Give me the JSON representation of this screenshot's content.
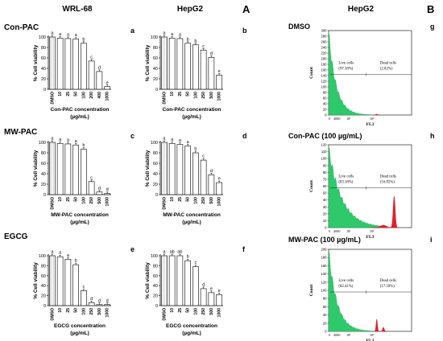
{
  "headers": {
    "panel_A": "A",
    "panel_B": "B",
    "col_wrl": "WRL-68",
    "col_hepg2": "HepG2",
    "col_flow": "HepG2"
  },
  "rows": [
    {
      "label": "Con-PAC"
    },
    {
      "label": "MW-PAC"
    },
    {
      "label": "EGCG"
    }
  ],
  "bar_axis": {
    "ylabel": "% Cell viability",
    "yticks": [
      "0",
      "20",
      "40",
      "60",
      "80",
      "100"
    ],
    "unit": "(µg/mL)"
  },
  "flow_axis": {
    "ylabel": "Count",
    "xlabel": "FL3"
  },
  "chart_data": [
    {
      "type": "bar",
      "panel": "a",
      "title": "WRL-68",
      "xlabel": "Con-PAC concentration",
      "xlabel_unit": "(µg/mL)",
      "ylabel": "% Cell viability",
      "categories": [
        "DMSO",
        "10",
        "25",
        "50",
        "100",
        "200",
        "400",
        "1000"
      ],
      "values": [
        100,
        98,
        97,
        96,
        88,
        54,
        34,
        5
      ],
      "letters": [
        "a",
        "a",
        "a",
        "a",
        "b",
        "c",
        "d",
        "e"
      ],
      "ylim": [
        0,
        100
      ]
    },
    {
      "type": "bar",
      "panel": "b",
      "title": "HepG2",
      "xlabel": "Con-PAC concentration",
      "xlabel_unit": "(µg/mL)",
      "ylabel": "% Cell viability",
      "categories": [
        "DMSO",
        "10",
        "25",
        "50",
        "100",
        "250",
        "500",
        "1000"
      ],
      "values": [
        100,
        98,
        97,
        88,
        85,
        75,
        61,
        27
      ],
      "letters": [
        "a",
        "a",
        "a",
        "b",
        "b",
        "c",
        "d",
        "e"
      ],
      "ylim": [
        0,
        100
      ]
    },
    {
      "type": "bar",
      "panel": "c",
      "xlabel": "MW-PAC concentration",
      "xlabel_unit": "(µg/mL)",
      "ylabel": "% Cell viability",
      "categories": [
        "DMSO",
        "10",
        "25",
        "50",
        "100",
        "250",
        "500",
        "1000"
      ],
      "values": [
        100,
        98,
        97,
        95,
        87,
        25,
        5,
        2
      ],
      "letters": [
        "a",
        "a",
        "a",
        "a",
        "b",
        "c",
        "d",
        "d"
      ],
      "ylim": [
        0,
        100
      ]
    },
    {
      "type": "bar",
      "panel": "d",
      "xlabel": "MW-PAC concentration",
      "xlabel_unit": "(µg/mL)",
      "ylabel": "% Cell viability",
      "categories": [
        "DMSO",
        "10",
        "25",
        "50",
        "100",
        "250",
        "500",
        "1000"
      ],
      "values": [
        100,
        98,
        96,
        93,
        80,
        66,
        38,
        23
      ],
      "letters": [
        "a",
        "a",
        "a",
        "a",
        "b",
        "c",
        "d",
        "e"
      ],
      "ylim": [
        0,
        100
      ]
    },
    {
      "type": "bar",
      "panel": "e",
      "xlabel": "EGCG concentration",
      "xlabel_unit": "(µg/mL)",
      "ylabel": "% Cell viability",
      "categories": [
        "DMSO",
        "10",
        "25",
        "50",
        "100",
        "250",
        "500",
        "1000"
      ],
      "values": [
        100,
        98,
        93,
        82,
        30,
        6,
        2,
        2
      ],
      "letters": [
        "a",
        "a",
        "a",
        "b",
        "c",
        "d",
        "d",
        "d"
      ],
      "ylim": [
        0,
        100
      ]
    },
    {
      "type": "bar",
      "panel": "f",
      "xlabel": "EGCG concentration",
      "xlabel_unit": "(µg/mL)",
      "ylabel": "% Cell viability",
      "categories": [
        "DMSO",
        "10",
        "25",
        "50",
        "100",
        "250",
        "500",
        "1000"
      ],
      "values": [
        100,
        100,
        100,
        90,
        78,
        34,
        26,
        22
      ],
      "letters": [
        "a",
        "ab",
        "ab",
        "b",
        "c",
        "d",
        "e",
        "e"
      ],
      "ylim": [
        0,
        100
      ]
    },
    {
      "type": "area",
      "panel": "g",
      "title": "DMSO",
      "xlabel": "FL3",
      "ylabel": "Count",
      "yticks": [
        "0",
        "20",
        "40",
        "60",
        "80",
        "100",
        "120",
        "140",
        "160",
        "180",
        "200",
        "220",
        "240",
        "260",
        "280",
        "300"
      ],
      "ylim": [
        0,
        300
      ],
      "xticks": [
        "0",
        "4000",
        "10¹",
        "10²"
      ],
      "gates": [
        {
          "label": "Live cells",
          "percent": "(97.18%)"
        },
        {
          "label": "Dead cells",
          "percent": "(2.82%)"
        }
      ]
    },
    {
      "type": "area",
      "panel": "h",
      "title": "Con-PAC (100 µg/mL)",
      "xlabel": "FL3",
      "ylabel": "Count",
      "yticks": [
        "0",
        "10",
        "20",
        "30",
        "40",
        "50",
        "60",
        "70",
        "80",
        "90",
        "100",
        "110",
        "120"
      ],
      "ylim": [
        0,
        120
      ],
      "xticks": [
        "0",
        "4000",
        "10¹",
        "10²"
      ],
      "gates": [
        {
          "label": "Live cells",
          "percent": "(83.18%)"
        },
        {
          "label": "Dead cells",
          "percent": "(16.82%)"
        }
      ]
    },
    {
      "type": "area",
      "panel": "i",
      "title": "MW-PAC (100 µg/mL)",
      "xlabel": "FL3",
      "ylabel": "Count",
      "yticks": [
        "0",
        "20",
        "40",
        "60",
        "80",
        "100",
        "120",
        "140",
        "160",
        "180",
        "200"
      ],
      "ylim": [
        0,
        200
      ],
      "xticks": [
        "0",
        "4000",
        "10¹",
        "10²"
      ],
      "gates": [
        {
          "label": "Live cells",
          "percent": "(82.41%)"
        },
        {
          "label": "Dead cells",
          "percent": "(17.59%)"
        }
      ]
    }
  ]
}
